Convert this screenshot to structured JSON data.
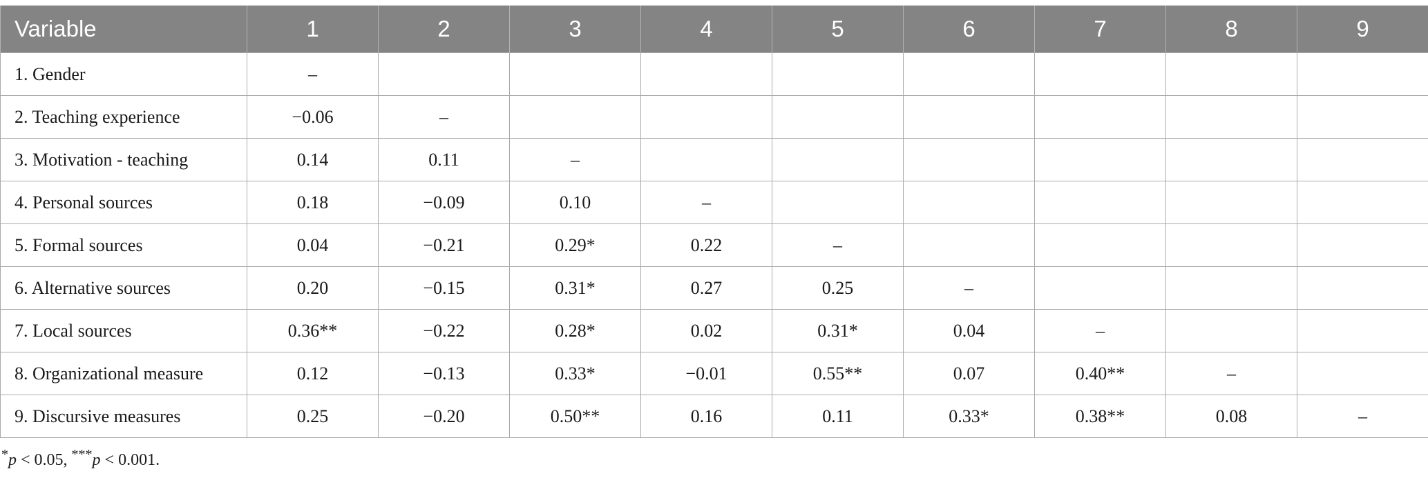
{
  "table": {
    "headers": [
      "Variable",
      "1",
      "2",
      "3",
      "4",
      "5",
      "6",
      "7",
      "8",
      "9"
    ],
    "rows": [
      [
        "1. Gender",
        "–",
        "",
        "",
        "",
        "",
        "",
        "",
        "",
        ""
      ],
      [
        "2. Teaching experience",
        "−0.06",
        "–",
        "",
        "",
        "",
        "",
        "",
        "",
        ""
      ],
      [
        "3. Motivation - teaching",
        "0.14",
        "0.11",
        "–",
        "",
        "",
        "",
        "",
        "",
        ""
      ],
      [
        "4. Personal sources",
        "0.18",
        "−0.09",
        "0.10",
        "–",
        "",
        "",
        "",
        "",
        ""
      ],
      [
        "5. Formal sources",
        "0.04",
        "−0.21",
        "0.29*",
        "0.22",
        "–",
        "",
        "",
        "",
        ""
      ],
      [
        "6. Alternative sources",
        "0.20",
        "−0.15",
        "0.31*",
        "0.27",
        "0.25",
        "–",
        "",
        "",
        ""
      ],
      [
        "7. Local sources",
        "0.36**",
        "−0.22",
        "0.28*",
        "0.02",
        "0.31*",
        "0.04",
        "–",
        "",
        ""
      ],
      [
        "8. Organizational measure",
        "0.12",
        "−0.13",
        "0.33*",
        "−0.01",
        "0.55**",
        "0.07",
        "0.40**",
        "–",
        ""
      ],
      [
        "9. Discursive measures",
        "0.25",
        "−0.20",
        "0.50**",
        "0.16",
        "0.11",
        "0.33*",
        "0.38**",
        "0.08",
        "–"
      ]
    ]
  },
  "footnote": {
    "sym1": "*",
    "p1": "p",
    "t1": " < 0.05, ",
    "sym2": "***",
    "p2": "p",
    "t2": " < 0.001."
  }
}
